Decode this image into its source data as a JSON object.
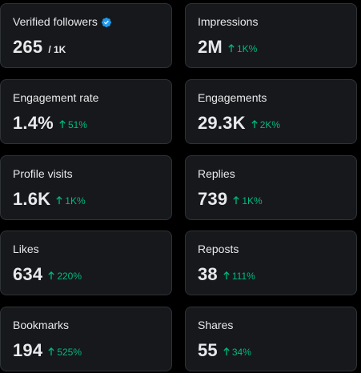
{
  "colors": {
    "background": "#000000",
    "card": "#16181c",
    "border": "#2f3336",
    "text": "#e7e9ea",
    "positive": "#00ba7c",
    "verified": "#1d9bf0"
  },
  "metrics": {
    "verified_followers": {
      "label": "Verified followers",
      "value": "265",
      "suffix": "/ 1K",
      "icon": "verified-badge-icon"
    },
    "impressions": {
      "label": "Impressions",
      "value": "2M",
      "delta": "1K%",
      "icon": "arrow-up-icon"
    },
    "engagement_rate": {
      "label": "Engagement rate",
      "value": "1.4%",
      "delta": "51%",
      "icon": "arrow-up-icon"
    },
    "engagements": {
      "label": "Engagements",
      "value": "29.3K",
      "delta": "2K%",
      "icon": "arrow-up-icon"
    },
    "profile_visits": {
      "label": "Profile visits",
      "value": "1.6K",
      "delta": "1K%",
      "icon": "arrow-up-icon"
    },
    "replies": {
      "label": "Replies",
      "value": "739",
      "delta": "1K%",
      "icon": "arrow-up-icon"
    },
    "likes": {
      "label": "Likes",
      "value": "634",
      "delta": "220%",
      "icon": "arrow-up-icon"
    },
    "reposts": {
      "label": "Reposts",
      "value": "38",
      "delta": "111%",
      "icon": "arrow-up-icon"
    },
    "bookmarks": {
      "label": "Bookmarks",
      "value": "194",
      "delta": "525%",
      "icon": "arrow-up-icon"
    },
    "shares": {
      "label": "Shares",
      "value": "55",
      "delta": "34%",
      "icon": "arrow-up-icon"
    }
  }
}
